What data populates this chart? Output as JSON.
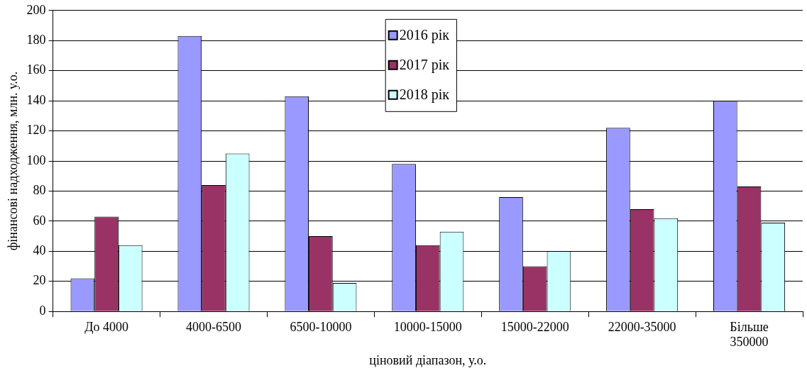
{
  "chart_data": {
    "type": "bar",
    "xlabel": "ціновий діапазон, у.о.",
    "ylabel": "фінансові надходження, млн. у.о.",
    "categories": [
      "До 4000",
      "4000-6500",
      "6500-10000",
      "10000-15000",
      "15000-22000",
      "22000-35000",
      "Більше 350000"
    ],
    "series": [
      {
        "name": "2016 рік",
        "color": "#9999ff",
        "values": [
          22,
          183,
          143,
          98,
          76,
          122,
          140
        ]
      },
      {
        "name": "2017 рік",
        "color": "#993366",
        "values": [
          63,
          84,
          50,
          44,
          30,
          68,
          83
        ]
      },
      {
        "name": "2018 рік",
        "color": "#ccffff",
        "values": [
          44,
          105,
          19,
          53,
          40,
          62,
          59
        ]
      }
    ],
    "ylim": [
      0,
      200
    ],
    "yticks": [
      0,
      20,
      40,
      60,
      80,
      100,
      120,
      140,
      160,
      180,
      200
    ],
    "grid": "y",
    "legend": "top"
  }
}
